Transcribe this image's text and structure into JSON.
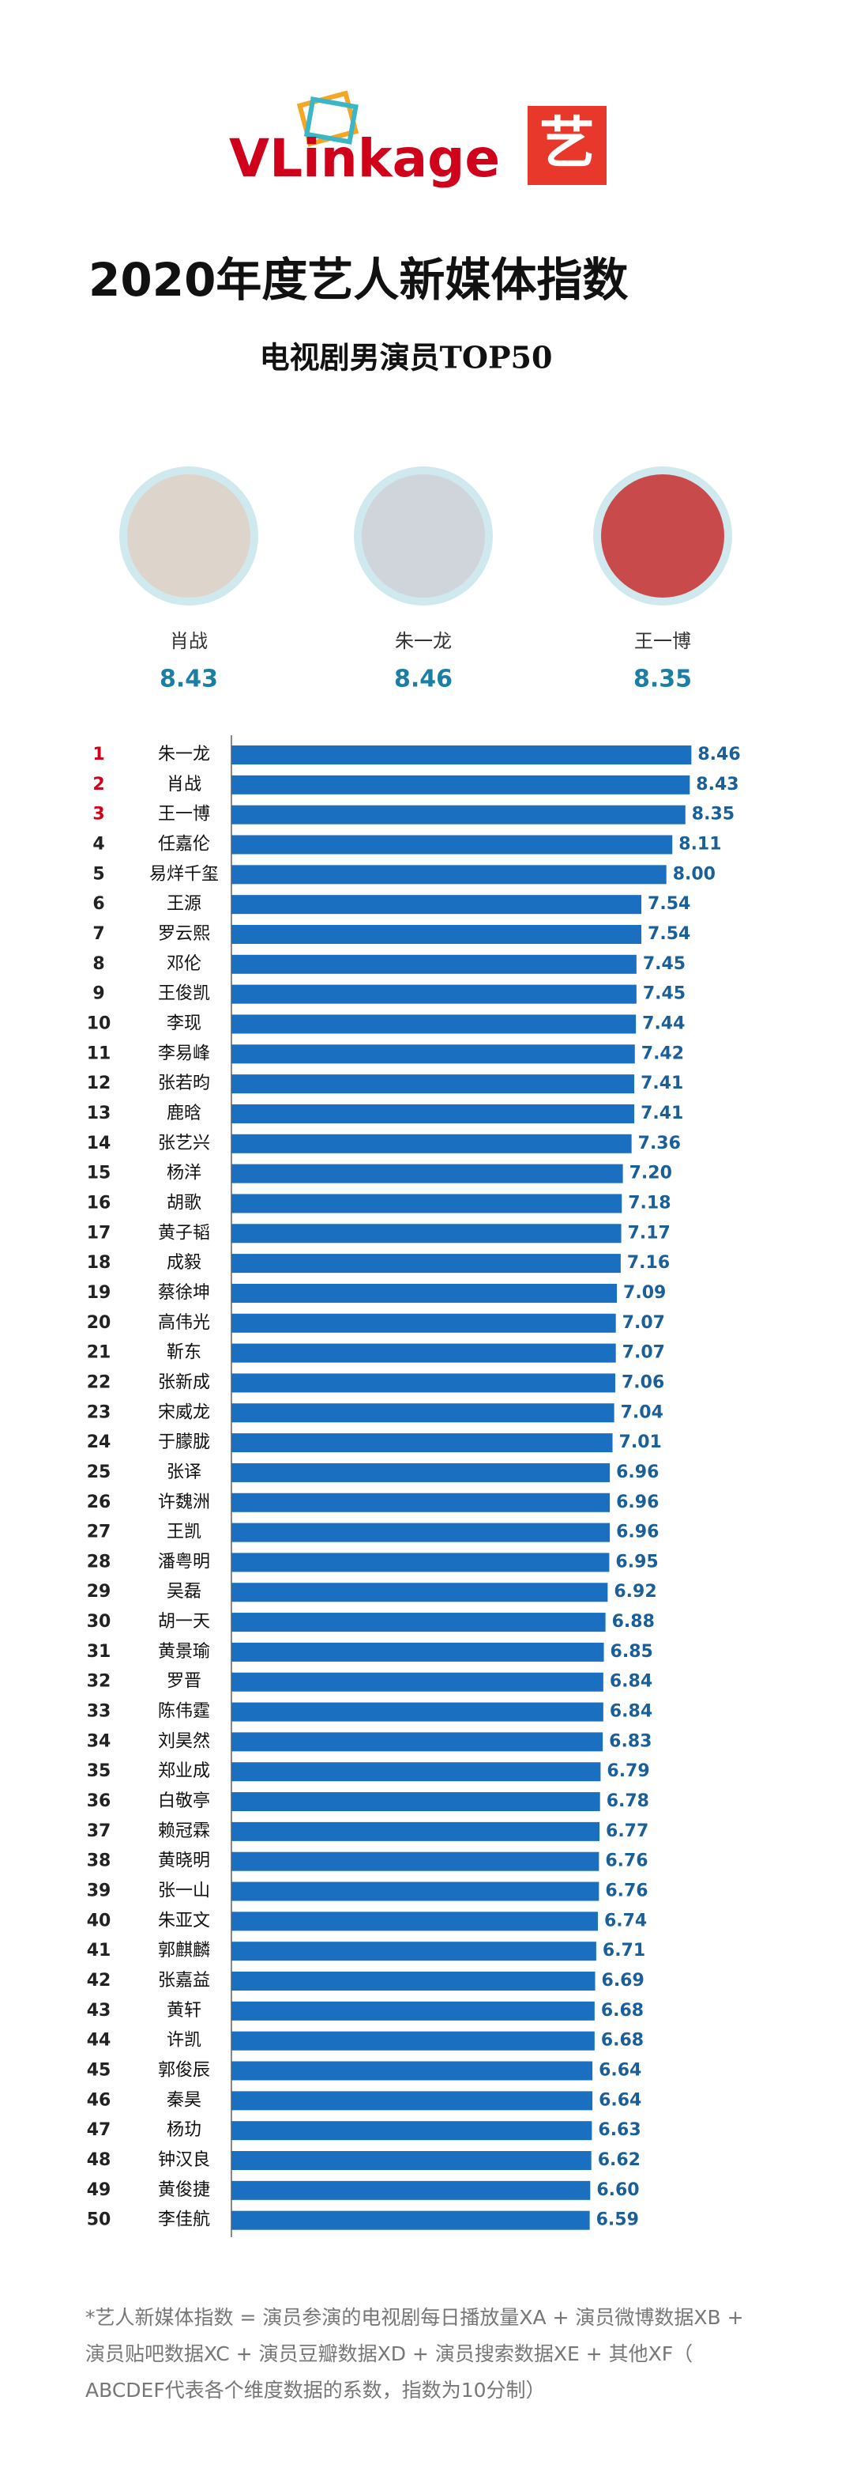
{
  "header": {
    "logo": "VLinkage",
    "badge": "艺",
    "title": "2020年度艺人新媒体指数",
    "subtitle": "电视剧男演员TOP50"
  },
  "podium": [
    {
      "name": "肖战",
      "value": 8.43
    },
    {
      "name": "朱一龙",
      "value": 8.46
    },
    {
      "name": "王一博",
      "value": 8.35
    }
  ],
  "chart_data": {
    "type": "hbar",
    "color": "#1a6fc0",
    "label_color": "#1a5f9a",
    "rank_color": "#222",
    "highlight_color": "#d0021b",
    "highlight_count": 3,
    "xlim": [
      0,
      8.6
    ],
    "ranks": [
      1,
      2,
      3,
      4,
      5,
      6,
      7,
      8,
      9,
      10,
      11,
      12,
      13,
      14,
      15,
      16,
      17,
      18,
      19,
      20,
      21,
      22,
      23,
      24,
      25,
      26,
      27,
      28,
      29,
      30,
      31,
      32,
      33,
      34,
      35,
      36,
      37,
      38,
      39,
      40,
      41,
      42,
      43,
      44,
      45,
      46,
      47,
      48,
      49,
      50
    ],
    "categories": [
      "朱一龙",
      "肖战",
      "王一博",
      "任嘉伦",
      "易烊千玺",
      "王源",
      "罗云熙",
      "邓伦",
      "王俊凯",
      "李现",
      "李易峰",
      "张若昀",
      "鹿晗",
      "张艺兴",
      "杨洋",
      "胡歌",
      "黄子韬",
      "成毅",
      "蔡徐坤",
      "高伟光",
      "靳东",
      "张新成",
      "宋威龙",
      "于朦胧",
      "张译",
      "许魏洲",
      "王凯",
      "潘粤明",
      "吴磊",
      "胡一天",
      "黄景瑜",
      "罗晋",
      "陈伟霆",
      "刘昊然",
      "郑业成",
      "白敬亭",
      "赖冠霖",
      "黄晓明",
      "张一山",
      "朱亚文",
      "郭麒麟",
      "张嘉益",
      "黄轩",
      "许凯",
      "郭俊辰",
      "秦昊",
      "杨玏",
      "钟汉良",
      "黄俊捷",
      "李佳航"
    ],
    "values": [
      8.46,
      8.43,
      8.35,
      8.11,
      8.0,
      7.54,
      7.54,
      7.45,
      7.45,
      7.44,
      7.42,
      7.41,
      7.41,
      7.36,
      7.2,
      7.18,
      7.17,
      7.16,
      7.09,
      7.07,
      7.07,
      7.06,
      7.04,
      7.01,
      6.96,
      6.96,
      6.96,
      6.95,
      6.92,
      6.88,
      6.85,
      6.84,
      6.84,
      6.83,
      6.79,
      6.78,
      6.77,
      6.76,
      6.76,
      6.74,
      6.71,
      6.69,
      6.68,
      6.68,
      6.64,
      6.64,
      6.63,
      6.62,
      6.6,
      6.59
    ],
    "value_labels": [
      "8.46",
      "8.43",
      "8.35",
      "8.11",
      "8.00",
      "7.54",
      "7.54",
      "7.45",
      "7.45",
      "7.44",
      "7.42",
      "7.41",
      "7.41",
      "7.36",
      "7.20",
      "7.18",
      "7.17",
      "7.16",
      "7.09",
      "7.07",
      "7.07",
      "7.06",
      "7.04",
      "7.01",
      "6.96",
      "6.96",
      "6.96",
      "6.95",
      "6.92",
      "6.88",
      "6.85",
      "6.84",
      "6.84",
      "6.83",
      "6.79",
      "6.78",
      "6.77",
      "6.76",
      "6.76",
      "6.74",
      "6.71",
      "6.69",
      "6.68",
      "6.68",
      "6.64",
      "6.64",
      "6.63",
      "6.62",
      "6.60",
      "6.59"
    ]
  },
  "footnote": [
    "*艺人新媒体指数 = 演员参演的电视剧每日播放量XA + 演员微博数据XB +",
    "演员贴吧数据XC + 演员豆瓣数据XD + 演员搜索数据XE + 其他XF（",
    "ABCDEF代表各个维度数据的系数，指数为10分制）"
  ]
}
